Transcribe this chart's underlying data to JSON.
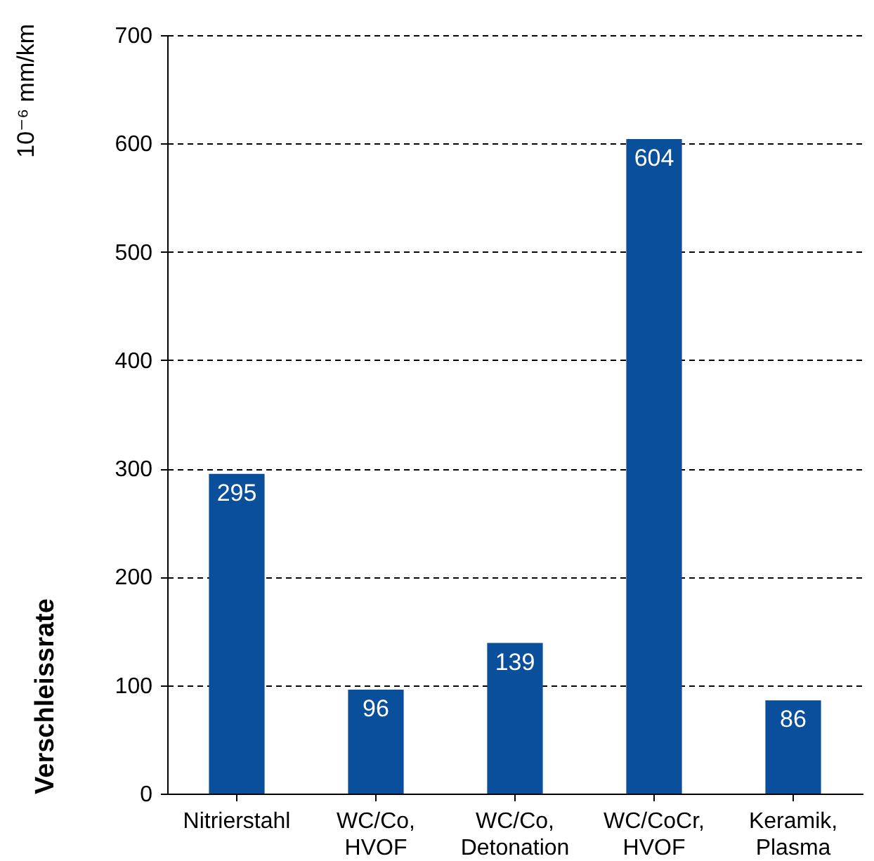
{
  "chart_data": {
    "type": "bar",
    "ylabel": "Verschleissrate",
    "annotations": [
      "10⁻⁶ mm/km"
    ],
    "categories": [
      "Nitrierstahl",
      "WC/Co, HVOF",
      "WC/Co, Detonation",
      "WC/CoCr, HVOF",
      "Keramik, Plasma"
    ],
    "values": [
      295,
      96,
      139,
      604,
      86
    ],
    "color": "#0a4f9c",
    "ylim": [
      0,
      700
    ],
    "yticks": [
      0,
      100,
      200,
      300,
      400,
      500,
      600,
      700
    ],
    "grid": "y",
    "data_labels": true
  }
}
